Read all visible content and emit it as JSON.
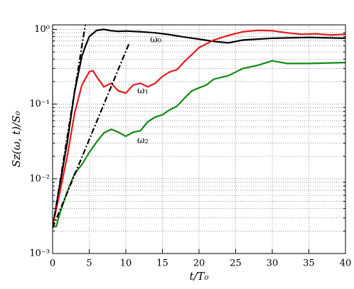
{
  "chart_data": {
    "type": "line",
    "xlabel": "t/T₀",
    "ylabel": "Sᴢ(ω, t)/S₀",
    "xlim": [
      0,
      40
    ],
    "ylim": [
      0.001,
      1.15
    ],
    "yscale": "log",
    "grid": true,
    "xticks": [
      0,
      5,
      10,
      15,
      20,
      25,
      30,
      35,
      40
    ],
    "yticks": [
      {
        "value": 0.001,
        "label": "10⁻³"
      },
      {
        "value": 0.01,
        "label": "10⁻²"
      },
      {
        "value": 0.1,
        "label": "10⁻¹"
      },
      {
        "value": 1,
        "label": "10⁰"
      }
    ],
    "annotations": [
      "ω₀",
      "ω₁",
      "ω₂"
    ],
    "series": [
      {
        "color": "#000000",
        "x": [
          0,
          2,
          3,
          4,
          4.5,
          5,
          6,
          7,
          8,
          9,
          10,
          12,
          14,
          16,
          18,
          20,
          22,
          24,
          26,
          28,
          30,
          35,
          40
        ],
        "values": [
          0.00225,
          0.031,
          0.145,
          0.44,
          0.6,
          0.8,
          0.97,
          1.0,
          0.96,
          0.94,
          0.95,
          0.93,
          0.9,
          0.85,
          0.79,
          0.74,
          0.69,
          0.66,
          0.72,
          0.74,
          0.76,
          0.78,
          0.76
        ]
      },
      {
        "color": "#e41a1c",
        "x": [
          0,
          1,
          2,
          3,
          4,
          5,
          5.5,
          6,
          7,
          8,
          9,
          10,
          11,
          12,
          13,
          14,
          15,
          16,
          17,
          18,
          19,
          20,
          22,
          24,
          26,
          28,
          30,
          32,
          34,
          36,
          38,
          40
        ],
        "values": [
          0.0023,
          0.0067,
          0.02,
          0.075,
          0.18,
          0.27,
          0.28,
          0.235,
          0.17,
          0.19,
          0.15,
          0.14,
          0.18,
          0.19,
          0.17,
          0.19,
          0.235,
          0.27,
          0.29,
          0.37,
          0.46,
          0.57,
          0.72,
          0.83,
          0.93,
          0.97,
          0.96,
          0.9,
          0.86,
          0.87,
          0.84,
          0.86
        ]
      },
      {
        "color": "#138a13",
        "x": [
          0,
          0.5,
          1,
          2,
          3,
          4,
          5,
          6,
          7,
          8,
          9,
          10,
          11,
          12,
          13,
          14,
          15,
          16,
          17,
          18,
          19,
          20,
          21,
          22,
          24,
          26,
          28,
          30,
          32,
          35,
          40
        ],
        "values": [
          0.0023,
          0.0023,
          0.0035,
          0.0067,
          0.0117,
          0.0155,
          0.0225,
          0.031,
          0.041,
          0.046,
          0.042,
          0.037,
          0.042,
          0.044,
          0.058,
          0.067,
          0.072,
          0.084,
          0.094,
          0.12,
          0.15,
          0.165,
          0.18,
          0.215,
          0.24,
          0.3,
          0.33,
          0.38,
          0.35,
          0.35,
          0.36
        ]
      },
      {
        "color": "#000000",
        "dash": "8,3,2,3",
        "x": [
          0,
          4.47
        ],
        "values": [
          0.0022,
          1.15
        ]
      },
      {
        "color": "#000000",
        "dash": "8,3,2,3",
        "x": [
          0,
          10.5
        ],
        "values": [
          0.0022,
          0.67
        ]
      }
    ]
  }
}
